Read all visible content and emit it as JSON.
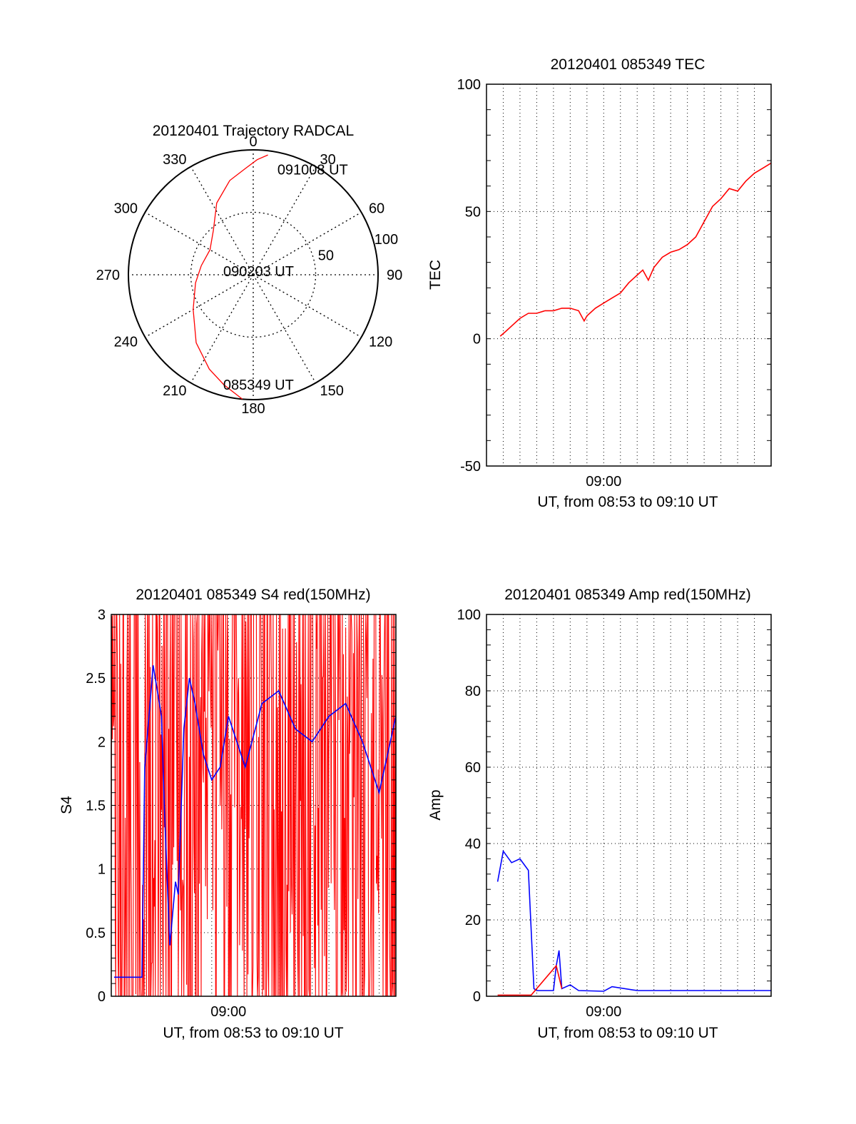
{
  "colors": {
    "primary": "#ff0000",
    "secondary": "#0000ff",
    "axis": "#000000",
    "background": "#ffffff"
  },
  "chart_data": [
    {
      "type": "polar",
      "title": "20120401 Trajectory RADCAL",
      "azimuth_ticks": [
        "0",
        "30",
        "60",
        "90",
        "120",
        "150",
        "180",
        "210",
        "240",
        "270",
        "300",
        "330"
      ],
      "radial_ticks": [
        "50",
        "100"
      ],
      "rlim": [
        0,
        100
      ],
      "series": [
        {
          "color": "#ff0000",
          "points": [
            {
              "az": 185,
              "el": 0
            },
            {
              "az": 195,
              "el": 8
            },
            {
              "az": 205,
              "el": 15
            },
            {
              "az": 220,
              "el": 26
            },
            {
              "az": 240,
              "el": 40
            },
            {
              "az": 262,
              "el": 48
            },
            {
              "az": 280,
              "el": 52
            },
            {
              "az": 300,
              "el": 54
            },
            {
              "az": 318,
              "el": 47
            },
            {
              "az": 333,
              "el": 32
            },
            {
              "az": 346,
              "el": 20
            },
            {
              "az": 356,
              "el": 13
            },
            {
              "az": 2,
              "el": 7
            },
            {
              "az": 7,
              "el": 3
            }
          ]
        }
      ],
      "annotations": [
        {
          "text": "091008 UT",
          "az": 8,
          "el": 2
        },
        {
          "text": "090203 UT",
          "az": 0,
          "el": 90
        },
        {
          "text": "085349 UT",
          "az": 183,
          "el": 0
        }
      ]
    },
    {
      "type": "line",
      "title": "20120401 085349 TEC",
      "xlabel": "UT, from 08:53 to 09:10 UT",
      "ylabel": "TEC",
      "xlim": [
        "08:53",
        "09:10"
      ],
      "xticks": [
        "09:00"
      ],
      "ylim": [
        -50,
        100
      ],
      "yticks": [
        "-50",
        "0",
        "50",
        "100"
      ],
      "grid": true,
      "series": [
        {
          "color": "#ff0000",
          "x": [
            "08:53:49",
            "08:54:10",
            "08:54:30",
            "08:55:00",
            "08:55:30",
            "08:56:00",
            "08:56:30",
            "08:57:00",
            "08:57:30",
            "08:58:00",
            "08:58:30",
            "08:58:50",
            "08:59:00",
            "08:59:30",
            "09:00:00",
            "09:00:30",
            "09:01:00",
            "09:01:30",
            "09:02:00",
            "09:02:20",
            "09:02:40",
            "09:03:00",
            "09:03:30",
            "09:04:00",
            "09:04:30",
            "09:05:00",
            "09:05:30",
            "09:06:00",
            "09:06:30",
            "09:07:00",
            "09:07:30",
            "09:08:00",
            "09:08:30",
            "09:09:00",
            "09:09:30",
            "09:10:00"
          ],
          "y": [
            1,
            3,
            5,
            8,
            10,
            10,
            11,
            11,
            12,
            12,
            11,
            7,
            9,
            12,
            14,
            16,
            18,
            22,
            25,
            27,
            23,
            28,
            32,
            34,
            35,
            37,
            40,
            46,
            52,
            55,
            59,
            58,
            62,
            65,
            67,
            69
          ]
        }
      ]
    },
    {
      "type": "line",
      "title": "20120401 085349 S4 red(150MHz)",
      "xlabel": "UT, from 08:53 to 09:10 UT",
      "ylabel": "S4",
      "xlim": [
        "08:53",
        "09:10"
      ],
      "xticks": [
        "09:00"
      ],
      "ylim": [
        0,
        3
      ],
      "yticks": [
        "0",
        "0.5",
        "1",
        "1.5",
        "2",
        "2.5",
        "3"
      ],
      "grid": true,
      "series": [
        {
          "color": "#ff0000",
          "style": "noise",
          "x_range": [
            "08:53:00",
            "09:10:00"
          ],
          "y_range": [
            0,
            3
          ]
        },
        {
          "color": "#0000ff",
          "x": [
            "08:53:10",
            "08:54:00",
            "08:54:50",
            "08:55:00",
            "08:55:30",
            "08:56:00",
            "08:56:10",
            "08:56:30",
            "08:56:50",
            "08:57:00",
            "08:57:20",
            "08:57:40",
            "08:58:00",
            "08:58:30",
            "08:59:00",
            "08:59:30",
            "09:00:00",
            "09:00:30",
            "09:01:00",
            "09:02:00",
            "09:03:00",
            "09:04:00",
            "09:05:00",
            "09:06:00",
            "09:07:00",
            "09:08:00",
            "09:09:00",
            "09:10:00"
          ],
          "y": [
            0.15,
            0.15,
            0.15,
            1.8,
            2.6,
            2.2,
            1.5,
            0.4,
            0.9,
            0.8,
            2.1,
            2.5,
            2.3,
            1.9,
            1.7,
            1.8,
            2.2,
            2.0,
            1.8,
            2.3,
            2.4,
            2.1,
            2.0,
            2.2,
            2.3,
            2.0,
            1.6,
            2.2
          ]
        }
      ]
    },
    {
      "type": "line",
      "title": "20120401 085349 Amp red(150MHz)",
      "xlabel": "UT, from 08:53 to 09:10 UT",
      "ylabel": "Amp",
      "xlim": [
        "08:53",
        "09:10"
      ],
      "xticks": [
        "09:00"
      ],
      "ylim": [
        0,
        100
      ],
      "yticks": [
        "0",
        "20",
        "40",
        "60",
        "80",
        "100"
      ],
      "grid": true,
      "series": [
        {
          "color": "#0000ff",
          "x": [
            "08:53:40",
            "08:54:00",
            "08:54:30",
            "08:55:00",
            "08:55:30",
            "08:55:50",
            "08:56:00",
            "08:57:00",
            "08:57:10",
            "08:57:20",
            "08:57:30",
            "08:58:00",
            "08:58:30",
            "09:00:00",
            "09:00:30",
            "09:02:00",
            "09:05:00",
            "09:08:00",
            "09:10:00"
          ],
          "y": [
            30,
            38,
            35,
            36,
            33,
            2,
            1.5,
            1.5,
            8,
            12,
            2,
            3,
            1.5,
            1.3,
            2.5,
            1.5,
            1.5,
            1.5,
            1.5
          ]
        },
        {
          "color": "#ff0000",
          "x": [
            "08:53:40",
            "08:55:40",
            "08:57:10",
            "08:57:30"
          ],
          "y": [
            0.3,
            0.3,
            8,
            2
          ]
        }
      ]
    }
  ]
}
